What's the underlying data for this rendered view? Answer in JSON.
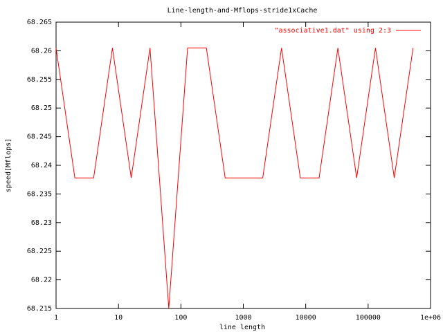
{
  "chart_data": {
    "type": "line",
    "title": "Line-length-and-Mflops-stride1xCache",
    "x_label": "line length",
    "y_label": "speed[Mflops]",
    "x": [
      1,
      2,
      4,
      8,
      16,
      32,
      64,
      128,
      256,
      512,
      1024,
      2048,
      4096,
      8192,
      16384,
      32768,
      65536,
      131072,
      262144,
      524288
    ],
    "series": [
      {
        "name": "\"associative1.dat\" using 2:3",
        "color": "#ff0000",
        "values": [
          68.2605,
          68.2378,
          68.2378,
          68.2605,
          68.2378,
          68.2605,
          68.215,
          68.2605,
          68.2605,
          68.2378,
          68.2378,
          68.2378,
          68.2605,
          68.2378,
          68.2378,
          68.2605,
          68.2378,
          68.2605,
          68.2378,
          68.2605
        ]
      }
    ],
    "xlim": [
      1,
      1000000
    ],
    "xscale": "log",
    "xticks": [
      1,
      10,
      100,
      1000,
      10000,
      100000,
      {
        "value": 1000000,
        "label": "1e+06"
      }
    ],
    "ylim": [
      68.215,
      68.265
    ],
    "yticks": [
      68.215,
      68.22,
      68.225,
      68.23,
      68.235,
      68.24,
      68.245,
      68.25,
      68.255,
      68.26,
      68.265
    ],
    "legend": "top-right"
  }
}
